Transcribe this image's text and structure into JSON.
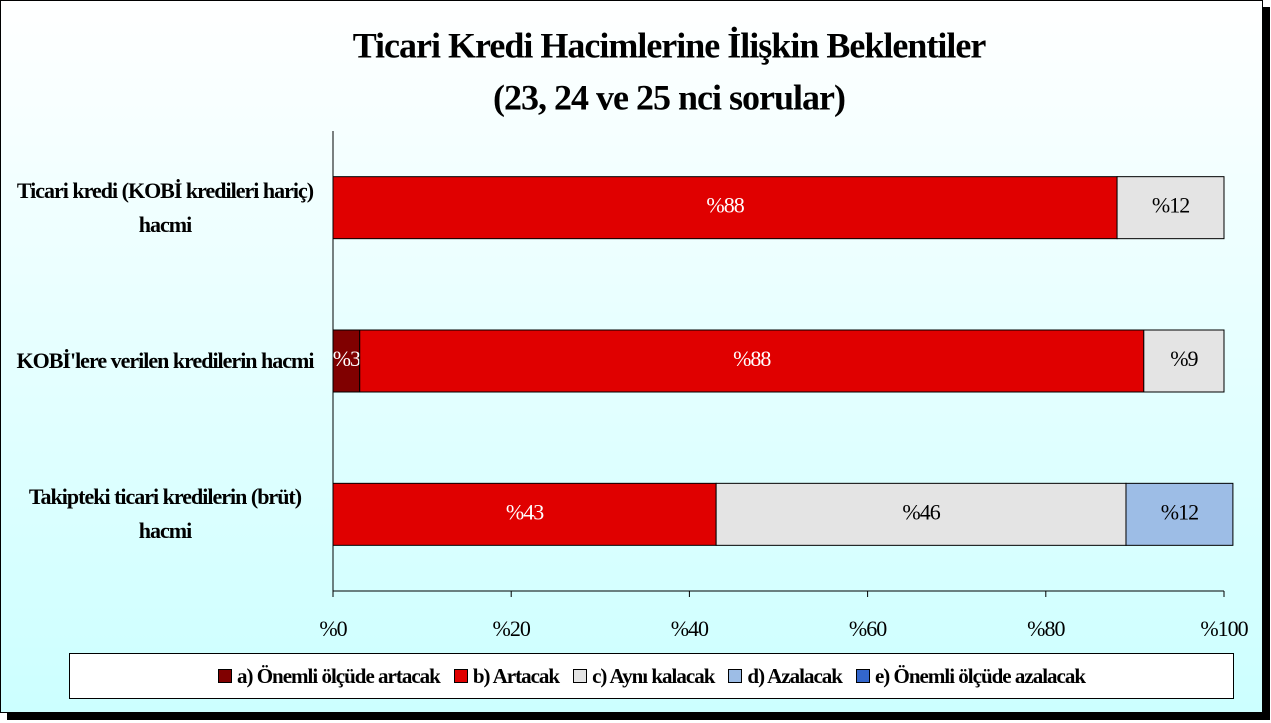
{
  "chart_data": {
    "type": "stacked_bar_horizontal",
    "title": "Ticari Kredi Hacimlerine İlişkin Beklentiler",
    "subtitle": "(23, 24 ve 25 nci sorular)",
    "categories": [
      "Ticari kredi (KOBİ kredileri hariç) hacmi",
      "KOBİ'lere verilen kredilerin hacmi",
      "Takipteki ticari kredilerin (brüt) hacmi"
    ],
    "series": [
      {
        "name": "a) Önemli ölçüde artacak",
        "color": "#800000",
        "values": [
          0,
          3,
          0
        ],
        "value_labels": [
          null,
          "%3",
          null
        ]
      },
      {
        "name": "b) Artacak",
        "color": "#e00000",
        "values": [
          88,
          88,
          43
        ],
        "value_labels": [
          "%88",
          "%88",
          "%43"
        ]
      },
      {
        "name": "c) Aynı kalacak",
        "color": "#e4e4e4",
        "values": [
          12,
          9,
          46
        ],
        "value_labels": [
          "%12",
          "%9",
          "%46"
        ]
      },
      {
        "name": "d) Azalacak",
        "color": "#9dbde6",
        "values": [
          0,
          0,
          12
        ],
        "value_labels": [
          null,
          null,
          "%12"
        ]
      },
      {
        "name": "e) Önemli ölçüde azalacak",
        "color": "#3366cc",
        "values": [
          0,
          0,
          0
        ],
        "value_labels": [
          null,
          null,
          null
        ]
      }
    ],
    "xlim": [
      0,
      100
    ],
    "xticks": [
      {
        "value": 0,
        "label": "%0"
      },
      {
        "value": 20,
        "label": "%20"
      },
      {
        "value": 40,
        "label": "%40"
      },
      {
        "value": 60,
        "label": "%60"
      },
      {
        "value": 80,
        "label": "%80"
      },
      {
        "value": 100,
        "label": "%100"
      }
    ],
    "legend": "bottom"
  }
}
